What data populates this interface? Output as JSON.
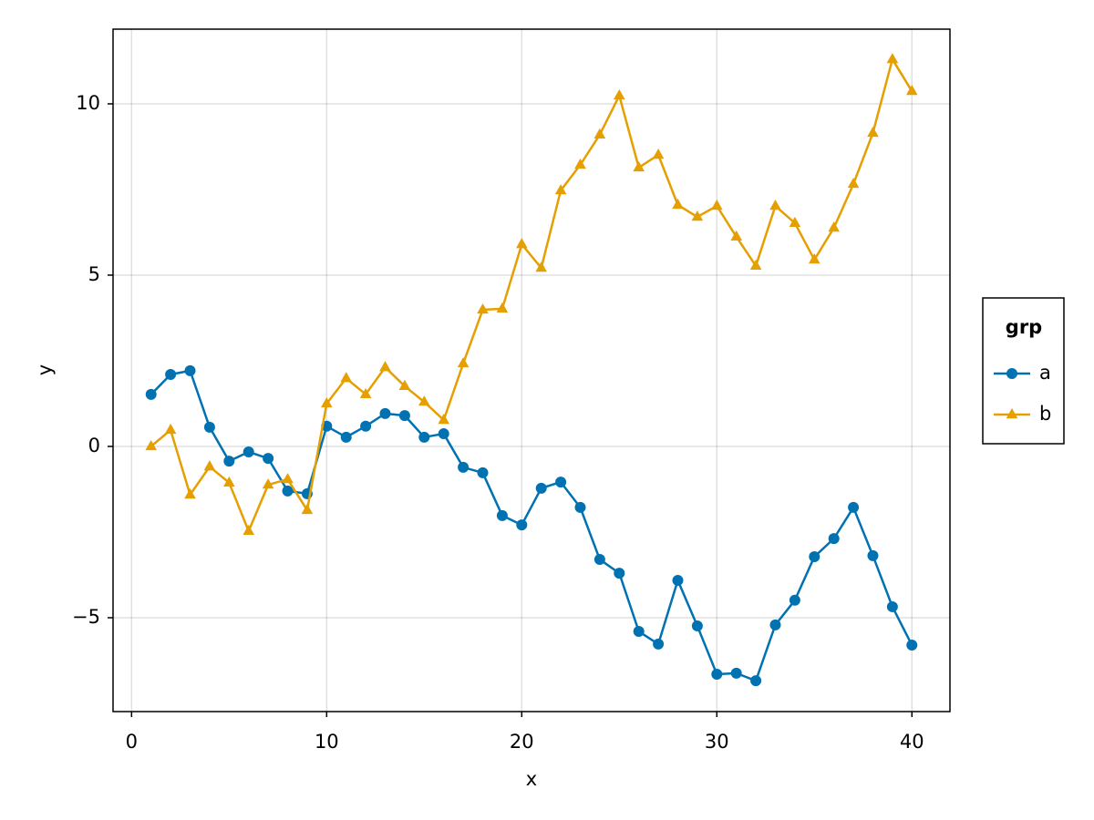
{
  "chart_data": {
    "type": "line",
    "x_label": "x",
    "y_label": "y",
    "legend_title": "grp",
    "legend_position": "right",
    "grid": true,
    "x": [
      1,
      2,
      3,
      4,
      5,
      6,
      7,
      8,
      9,
      10,
      11,
      12,
      13,
      14,
      15,
      16,
      17,
      18,
      19,
      20,
      21,
      22,
      23,
      24,
      25,
      26,
      27,
      28,
      29,
      30,
      31,
      32,
      33,
      34,
      35,
      36,
      37,
      38,
      39,
      40
    ],
    "series": [
      {
        "name": "a",
        "color": "#0072b2",
        "marker": "circle",
        "values": [
          1.52,
          2.1,
          2.21,
          0.56,
          -0.43,
          -0.16,
          -0.35,
          -1.3,
          -1.38,
          0.59,
          0.27,
          0.59,
          0.96,
          0.9,
          0.27,
          0.37,
          -0.61,
          -0.77,
          -2.02,
          -2.29,
          -1.22,
          -1.04,
          -1.78,
          -3.3,
          -3.7,
          -5.4,
          -5.77,
          -3.91,
          -5.24,
          -6.65,
          -6.62,
          -6.84,
          -5.21,
          -4.49,
          -3.22,
          -2.69,
          -1.78,
          -3.19,
          -4.68,
          -5.8
        ]
      },
      {
        "name": "b",
        "color": "#e69f00",
        "marker": "triangle",
        "values": [
          0,
          0.48,
          -1.41,
          -0.59,
          -1.06,
          -2.47,
          -1.12,
          -0.96,
          -1.86,
          1.25,
          1.99,
          1.52,
          2.31,
          1.76,
          1.3,
          0.77,
          2.42,
          3.99,
          4.02,
          5.9,
          5.21,
          7.47,
          8.22,
          9.1,
          10.24,
          8.14,
          8.51,
          7.05,
          6.7,
          7.02,
          6.12,
          5.27,
          7.02,
          6.52,
          5.45,
          6.38,
          7.66,
          9.15,
          11.3,
          10.37
        ]
      }
    ],
    "xlim": [
      -0.95,
      41.95
    ],
    "ylim": [
      -7.74,
      12.18
    ],
    "xticks": [
      0,
      10,
      20,
      30,
      40
    ],
    "yticks": [
      {
        "value": -5,
        "label": "−5"
      },
      0,
      5,
      10
    ]
  }
}
